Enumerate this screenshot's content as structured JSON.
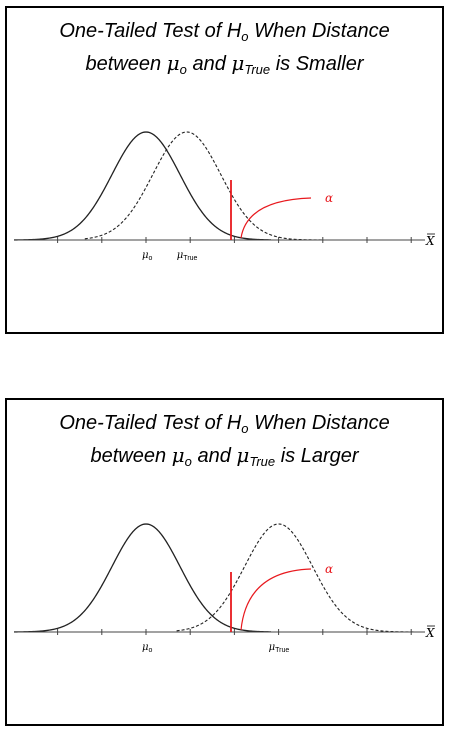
{
  "panels": [
    {
      "title_line1_a": "One-Tailed Test of ",
      "title_H": "H",
      "title_H_sub": "o",
      "title_line1_b": " When Distance",
      "title_line2_a": "between ",
      "title_mu0": "μ",
      "title_mu0_sub": "o",
      "title_and": " and ",
      "title_mu1": "μ",
      "title_mu1_sub": "True",
      "title_line2_b": " is Smaller",
      "label_mu0": "μ",
      "label_mu0_sub": "o",
      "label_mu1": "μ",
      "label_mu1_sub": "True",
      "label_alpha": "α",
      "label_x": "X",
      "mu_true_offset": 1.2
    },
    {
      "title_line1_a": "One-Tailed Test of ",
      "title_H": "H",
      "title_H_sub": "o",
      "title_line1_b": " When Distance",
      "title_line2_a": "between ",
      "title_mu0": "μ",
      "title_mu0_sub": "o",
      "title_and": " and ",
      "title_mu1": "μ",
      "title_mu1_sub": "True",
      "title_line2_b": " is Larger",
      "label_mu0": "μ",
      "label_mu0_sub": "o",
      "label_mu1": "μ",
      "label_mu1_sub": "True",
      "label_alpha": "α",
      "label_x": "X",
      "mu_true_offset": 3.9
    }
  ],
  "colors": {
    "curve": "#222222",
    "critical": "#e8191e",
    "axis": "#444444"
  }
}
